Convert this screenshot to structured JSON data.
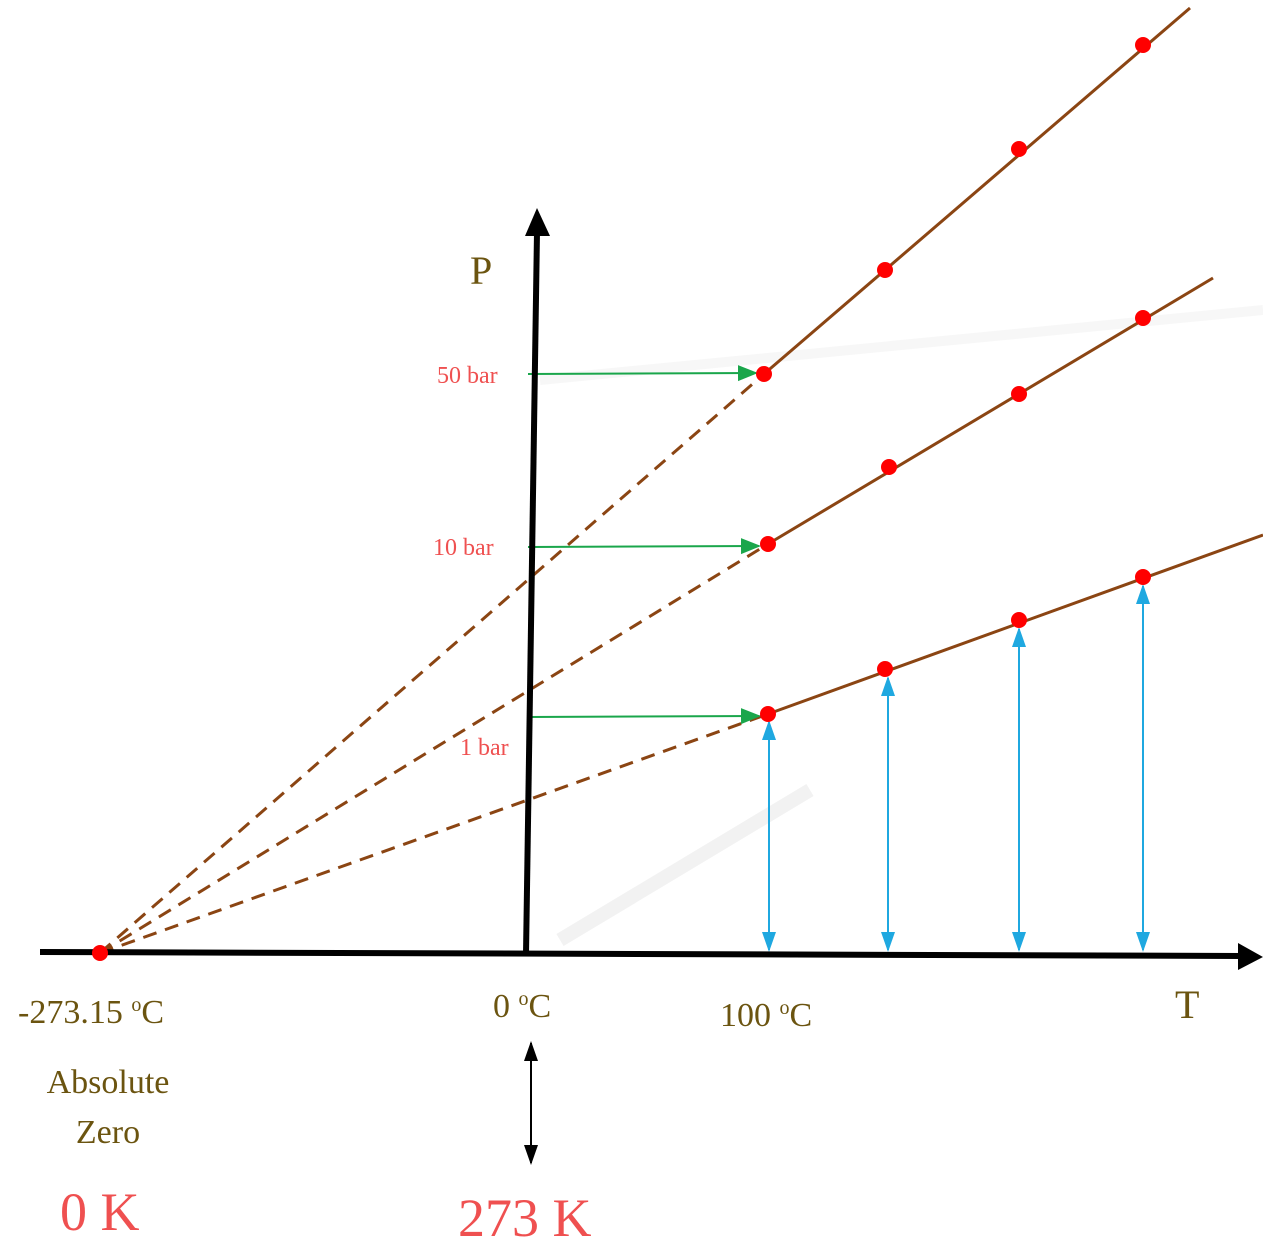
{
  "axes": {
    "y_label": "P",
    "x_label": "T"
  },
  "pressure_labels": [
    "50 bar",
    "10 bar",
    "1 bar"
  ],
  "temperature_labels": {
    "absolute_zero": "-273.15",
    "zero": "0",
    "hundred": "100",
    "unit_sup": "o",
    "unit": "C"
  },
  "annotations": {
    "absolute_line1": "Absolute",
    "absolute_line2": "Zero",
    "zero_kelvin": "0 K",
    "kelvin_273": "273 K"
  },
  "colors": {
    "axis": "#000000",
    "line": "#8b4513",
    "point": "#ff0000",
    "pressure_arrow": "#1aa64b",
    "temperature_arrow": "#1fa8e0",
    "label_olive": "#6b5410",
    "label_red": "#ef5050"
  }
}
